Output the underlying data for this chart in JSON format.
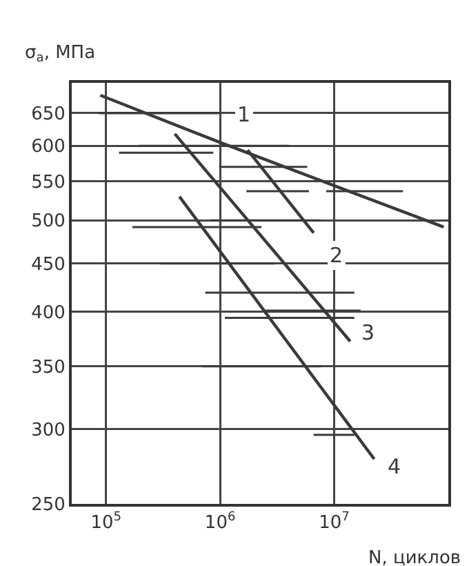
{
  "chart_data": {
    "type": "line",
    "ylabel": "σ$_{a}$, МПа",
    "xlabel": "N, циклов",
    "log": "xy",
    "grid": true,
    "legend": false,
    "marker": "none",
    "line_style": "solid",
    "xlim": [
      50000,
      100000000
    ],
    "xticks": [
      {
        "value": 100000,
        "label": "10$^{5}$"
      },
      {
        "value": 1000000,
        "label": "10$^{6}$"
      },
      {
        "value": 10000000,
        "label": "10$^{7}$"
      }
    ],
    "ylim": [
      250,
      700
    ],
    "yticks": [
      250,
      300,
      350,
      400,
      450,
      500,
      550,
      600,
      650
    ],
    "series": [
      {
        "name": "1",
        "color": "#3a3a3a",
        "x": [
          89000,
          1000000,
          91000000
        ],
        "values": [
          679,
          605,
          492
        ]
      },
      {
        "name": "2",
        "color": "#3a3a3a",
        "x": [
          1740000,
          6600000
        ],
        "values": [
          594,
          485
        ]
      },
      {
        "name": "3",
        "color": "#3a3a3a",
        "x": [
          400000,
          13800000
        ],
        "values": [
          618,
          372
        ]
      },
      {
        "name": "4",
        "color": "#3a3a3a",
        "x": [
          440000,
          22400000
        ],
        "values": [
          530,
          279
        ]
      },
      {
        "color": "#3a3a3a",
        "x": [
          87000,
          1000000
        ],
        "values": [
          650,
          650
        ]
      },
      {
        "color": "#3a3a3a",
        "x": [
          195000,
          4000000
        ],
        "values": [
          600,
          600
        ]
      },
      {
        "color": "#3a3a3a",
        "x": [
          130000,
          870000
        ],
        "values": [
          590,
          590
        ]
      },
      {
        "color": "#3a3a3a",
        "x": [
          980000,
          5800000
        ],
        "values": [
          570,
          570
        ]
      },
      {
        "color": "#3a3a3a",
        "x": [
          1700000,
          6000000
        ],
        "values": [
          537,
          537
        ]
      },
      {
        "color": "#3a3a3a",
        "x": [
          8500000,
          40000000
        ],
        "values": [
          537,
          537
        ]
      },
      {
        "color": "#3a3a3a",
        "x": [
          830000,
          7600000
        ],
        "values": [
          500,
          500
        ]
      },
      {
        "color": "#3a3a3a",
        "x": [
          170000,
          2300000
        ],
        "values": [
          492,
          492
        ]
      },
      {
        "color": "#3a3a3a",
        "x": [
          300000,
          3000000
        ],
        "values": [
          450,
          450
        ]
      },
      {
        "color": "#3a3a3a",
        "x": [
          740000,
          15000000
        ],
        "values": [
          419,
          419
        ]
      },
      {
        "color": "#3a3a3a",
        "x": [
          2500000,
          17000000
        ],
        "values": [
          401,
          401
        ]
      },
      {
        "color": "#3a3a3a",
        "x": [
          1100000,
          15000000
        ],
        "values": [
          394,
          394
        ]
      },
      {
        "color": "#3a3a3a",
        "x": [
          690000,
          7600000
        ],
        "values": [
          350,
          350
        ]
      },
      {
        "color": "#3a3a3a",
        "x": [
          6600000,
          15000000
        ],
        "values": [
          296,
          296
        ]
      }
    ]
  }
}
